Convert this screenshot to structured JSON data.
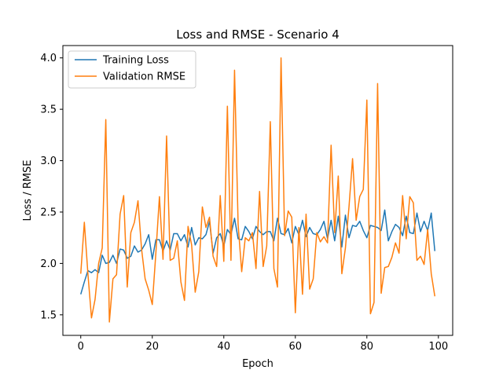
{
  "chart_data": {
    "type": "line",
    "title": "Loss and RMSE - Scenario 4",
    "xlabel": "Epoch",
    "ylabel": "Loss / RMSE",
    "xlim": [
      -5,
      104
    ],
    "ylim": [
      1.3,
      4.12
    ],
    "xticks": [
      0,
      20,
      40,
      60,
      80,
      100
    ],
    "yticks": [
      1.5,
      2.0,
      2.5,
      3.0,
      3.5,
      4.0
    ],
    "xtick_labels": [
      "0",
      "20",
      "40",
      "60",
      "80",
      "100"
    ],
    "ytick_labels": [
      "1.5",
      "2.0",
      "2.5",
      "3.0",
      "3.5",
      "4.0"
    ],
    "grid": false,
    "legend_position": "top-left",
    "x": [
      0,
      1,
      2,
      3,
      4,
      5,
      6,
      7,
      8,
      9,
      10,
      11,
      12,
      13,
      14,
      15,
      16,
      17,
      18,
      19,
      20,
      21,
      22,
      23,
      24,
      25,
      26,
      27,
      28,
      29,
      30,
      31,
      32,
      33,
      34,
      35,
      36,
      37,
      38,
      39,
      40,
      41,
      42,
      43,
      44,
      45,
      46,
      47,
      48,
      49,
      50,
      51,
      52,
      53,
      54,
      55,
      56,
      57,
      58,
      59,
      60,
      61,
      62,
      63,
      64,
      65,
      66,
      67,
      68,
      69,
      70,
      71,
      72,
      73,
      74,
      75,
      76,
      77,
      78,
      79,
      80,
      81,
      82,
      83,
      84,
      85,
      86,
      87,
      88,
      89,
      90,
      91,
      92,
      93,
      94,
      95,
      96,
      97,
      98,
      99
    ],
    "series": [
      {
        "name": "Training Loss",
        "color": "#1f77b4",
        "values": [
          1.7,
          1.82,
          1.93,
          1.91,
          1.94,
          1.91,
          2.08,
          2.0,
          2.01,
          2.08,
          2.0,
          2.14,
          2.13,
          2.05,
          2.07,
          2.17,
          2.11,
          2.13,
          2.19,
          2.28,
          2.04,
          2.23,
          2.23,
          2.12,
          2.22,
          2.13,
          2.29,
          2.29,
          2.22,
          2.28,
          2.16,
          2.35,
          2.18,
          2.25,
          2.24,
          2.28,
          2.41,
          2.1,
          2.25,
          2.29,
          2.17,
          2.33,
          2.28,
          2.44,
          2.24,
          2.23,
          2.36,
          2.31,
          2.24,
          2.36,
          2.31,
          2.28,
          2.31,
          2.31,
          2.22,
          2.44,
          2.29,
          2.28,
          2.34,
          2.2,
          2.36,
          2.28,
          2.42,
          2.26,
          2.35,
          2.29,
          2.28,
          2.33,
          2.41,
          2.24,
          2.42,
          2.22,
          2.46,
          2.16,
          2.47,
          2.25,
          2.37,
          2.36,
          2.41,
          2.32,
          2.25,
          2.37,
          2.36,
          2.35,
          2.32,
          2.52,
          2.22,
          2.31,
          2.38,
          2.35,
          2.27,
          2.46,
          2.3,
          2.29,
          2.49,
          2.31,
          2.41,
          2.32,
          2.49,
          2.12
        ]
      },
      {
        "name": "Validation RMSE",
        "color": "#ff7f0e",
        "values": [
          1.9,
          2.4,
          1.9,
          1.47,
          1.65,
          2.0,
          2.15,
          3.4,
          1.43,
          1.85,
          1.89,
          2.48,
          2.66,
          1.77,
          2.3,
          2.4,
          2.61,
          2.14,
          1.85,
          1.74,
          1.6,
          2.1,
          2.65,
          2.04,
          3.24,
          2.03,
          2.05,
          2.22,
          1.82,
          1.64,
          2.36,
          2.18,
          1.72,
          1.92,
          2.55,
          2.35,
          2.45,
          2.07,
          1.97,
          2.66,
          2.02,
          3.53,
          2.03,
          3.88,
          2.38,
          1.92,
          2.25,
          2.22,
          2.3,
          1.95,
          2.7,
          1.97,
          2.17,
          3.38,
          1.95,
          1.77,
          4.0,
          2.27,
          2.51,
          2.45,
          1.52,
          2.35,
          1.7,
          2.48,
          1.75,
          1.85,
          2.3,
          2.21,
          2.26,
          2.2,
          3.15,
          2.3,
          2.85,
          1.9,
          2.15,
          2.55,
          3.02,
          2.42,
          2.65,
          2.72,
          3.59,
          1.51,
          1.62,
          3.75,
          1.71,
          1.96,
          1.97,
          2.06,
          2.2,
          2.1,
          2.66,
          2.24,
          2.65,
          2.59,
          2.03,
          2.07,
          1.99,
          2.33,
          1.9,
          1.68
        ]
      }
    ]
  }
}
